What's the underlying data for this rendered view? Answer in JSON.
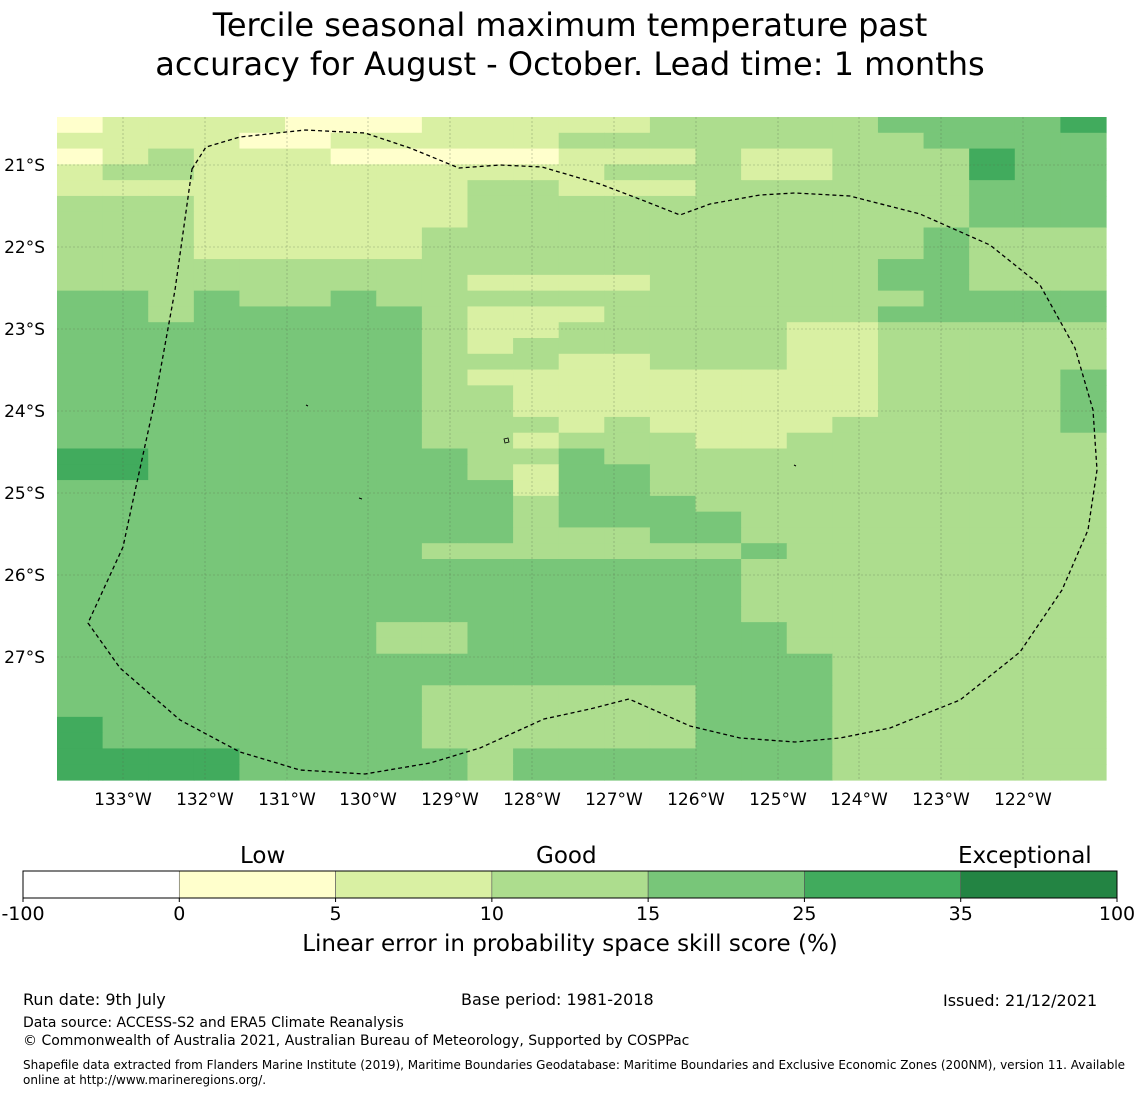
{
  "title": {
    "line1": "Tercile seasonal maximum temperature past",
    "line2": "accuracy for August - October. Lead time: 1 months"
  },
  "map": {
    "lon_labels": [
      "133°W",
      "132°W",
      "131°W",
      "130°W",
      "129°W",
      "128°W",
      "127°W",
      "126°W",
      "125°W",
      "124°W",
      "123°W",
      "122°W"
    ],
    "lat_labels": [
      "21°S",
      "22°S",
      "23°S",
      "24°S",
      "25°S",
      "26°S",
      "27°S"
    ],
    "class_colors": [
      "#ffffff",
      "#ffffcc",
      "#d9f0a3",
      "#addd8e",
      "#78c679",
      "#41ab5d",
      "#238443"
    ],
    "grid_rows": [
      "12222111222223333344445",
      "22221122222333333334444",
      "12322211111222322333544",
      "23322222222233322333544",
      "22222222233222333333444",
      "33322222233333333333444",
      "33322222233333333333444",
      "33322222333333333334333",
      "33322222333333333334333",
      "33333333333333333344333",
      "33333333322223333344333",
      "44343343333333333334444",
      "44344444322233333344444",
      "44444444322333332233333",
      "44444444323333332233333",
      "44444444333223332233333",
      "44444444322222222233334",
      "44444444332222222233334",
      "44444444332222222233334",
      "44444444333232222333334",
      "44444444332333223333333",
      "55444444433433333333333",
      "55444444432443333333333",
      "44444444442443333333333",
      "44444444443444333333333",
      "44444444443444433333333",
      "44444444443334433333333",
      "44444444333333343333333",
      "44444444444444433333333",
      "44444444444444433333333",
      "44444444444444433333333",
      "44444444444444433333333",
      "44444443344444443333333",
      "44444443344444443333333",
      "44444444444444444333333",
      "44444444444444444333333",
      "44444444333333444333333",
      "44444444333333444333333",
      "54444444333333444333333",
      "54444444333333444333333",
      "55554444434444444333333",
      "55554444434444444333333"
    ]
  },
  "colorbar": {
    "category_labels": [
      "Low",
      "Good",
      "Exceptional"
    ],
    "tick_labels": [
      "-100",
      "0",
      "5",
      "10",
      "15",
      "25",
      "35",
      "100"
    ],
    "title": "Linear error in probability space skill score (%)"
  },
  "footer": {
    "run_date": "Run date: 9th July",
    "base_period": "Base period: 1981-2018",
    "issued": "Issued: 21/12/2021",
    "data_source": "Data source: ACCESS-S2 and ERA5 Climate Reanalysis",
    "copyright": "© Commonwealth of Australia 2021, Australian Bureau of Meteorology, Supported by COSPPac",
    "shapefile": "Shapefile data extracted from Flanders Marine Institute (2019), Maritime Boundaries Geodatabase: Maritime Boundaries and Exclusive Economic Zones (200NM), version 11. Available online at http://www.marineregions.org/."
  }
}
